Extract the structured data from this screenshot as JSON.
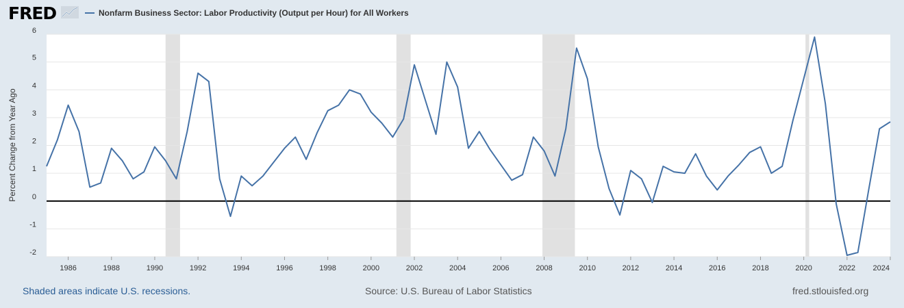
{
  "header": {
    "logo_text": "FRED",
    "legend_label": "Nonfarm Business Sector: Labor Productivity (Output per Hour) for All Workers"
  },
  "footer": {
    "recession_note": "Shaded areas indicate U.S. recessions.",
    "source": "Source: U.S. Bureau of Labor Statistics",
    "site": "fred.stlouisfed.org"
  },
  "colors": {
    "line": "#4572a7",
    "recession": "#e1e1e1",
    "page_bg": "#e1e9f0",
    "plot_bg": "#ffffff"
  },
  "chart_data": {
    "type": "line",
    "title": "",
    "xlabel": "",
    "ylabel": "Percent Change from Year Ago",
    "xlim": [
      1985,
      2024
    ],
    "ylim": [
      -2,
      6
    ],
    "y_ticks": [
      -2,
      -1,
      0,
      1,
      2,
      3,
      4,
      5,
      6
    ],
    "x_ticks": [
      1986,
      1988,
      1990,
      1992,
      1994,
      1996,
      1998,
      2000,
      2002,
      2004,
      2006,
      2008,
      2010,
      2012,
      2014,
      2016,
      2018,
      2020,
      2022,
      2024
    ],
    "grid": "horizontal",
    "recessions": [
      [
        1990.5,
        1991.17
      ],
      [
        2001.17,
        2001.83
      ],
      [
        2007.92,
        2009.42
      ],
      [
        2020.08,
        2020.25
      ]
    ],
    "series": [
      {
        "name": "Nonfarm Business Sector: Labor Productivity (Output per Hour) for All Workers",
        "x": [
          1985,
          1985.5,
          1986,
          1986.5,
          1987,
          1987.5,
          1988,
          1988.5,
          1989,
          1989.5,
          1990,
          1990.5,
          1991,
          1991.5,
          1992,
          1992.5,
          1993,
          1993.5,
          1994,
          1994.5,
          1995,
          1995.5,
          1996,
          1996.5,
          1997,
          1997.5,
          1998,
          1998.5,
          1999,
          1999.5,
          2000,
          2000.5,
          2001,
          2001.5,
          2002,
          2002.5,
          2003,
          2003.5,
          2004,
          2004.5,
          2005,
          2005.5,
          2006,
          2006.5,
          2007,
          2007.5,
          2008,
          2008.5,
          2009,
          2009.5,
          2010,
          2010.5,
          2011,
          2011.5,
          2012,
          2012.5,
          2013,
          2013.5,
          2014,
          2014.5,
          2015,
          2015.5,
          2016,
          2016.5,
          2017,
          2017.5,
          2018,
          2018.5,
          2019,
          2019.5,
          2020,
          2020.5,
          2021,
          2021.5,
          2022,
          2022.5,
          2023,
          2023.5,
          2024
        ],
        "values": [
          1.25,
          2.2,
          3.45,
          2.5,
          0.5,
          0.65,
          1.9,
          1.45,
          0.8,
          1.05,
          1.95,
          1.45,
          0.8,
          2.5,
          4.6,
          4.3,
          0.8,
          -0.55,
          0.9,
          0.55,
          0.9,
          1.4,
          1.9,
          2.3,
          1.5,
          2.45,
          3.25,
          3.45,
          4.0,
          3.85,
          3.2,
          2.8,
          2.3,
          2.95,
          4.9,
          3.65,
          2.4,
          5.0,
          4.1,
          1.9,
          2.5,
          1.85,
          1.3,
          0.75,
          0.95,
          2.3,
          1.8,
          0.9,
          2.6,
          5.5,
          4.4,
          1.95,
          0.45,
          -0.5,
          1.1,
          0.8,
          -0.05,
          1.25,
          1.05,
          1.0,
          1.7,
          0.9,
          0.4,
          0.9,
          1.3,
          1.75,
          1.95,
          1.0,
          1.25,
          2.9,
          4.4,
          5.9,
          3.5,
          -0.1,
          -1.95,
          -1.85,
          0.4,
          2.6,
          2.85
        ]
      }
    ]
  }
}
